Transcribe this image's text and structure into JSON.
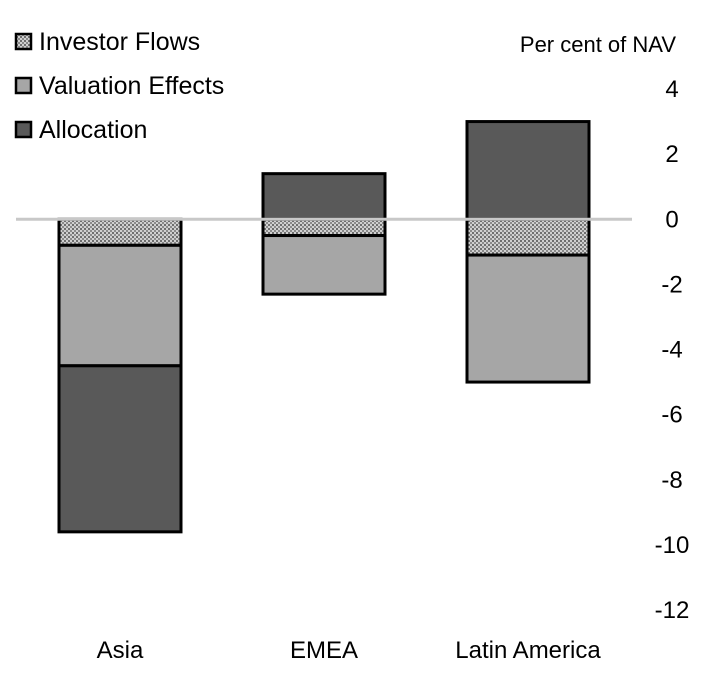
{
  "chart_data": {
    "type": "bar",
    "stacked": true,
    "title": "",
    "unit_label": "Per cent of NAV",
    "categories": [
      "Asia",
      "EMEA",
      "Latin America"
    ],
    "series": [
      {
        "name": "Investor Flows",
        "values": [
          -0.8,
          -0.5,
          -1.1
        ],
        "color": "#b8b8b8",
        "pattern": "dotted"
      },
      {
        "name": "Valuation Effects",
        "values": [
          -3.7,
          -1.8,
          -3.9
        ],
        "color": "#a6a6a6",
        "pattern": "solid"
      },
      {
        "name": "Allocation",
        "values": [
          -5.1,
          1.4,
          3.0
        ],
        "color": "#595959",
        "pattern": "solid"
      }
    ],
    "ylim": [
      -12,
      4
    ],
    "yticks": [
      "4",
      "2",
      "0",
      "-2",
      "-4",
      "-6",
      "-8",
      "-10",
      "-12"
    ],
    "y_axis_side": "right",
    "legend_position": "top-left",
    "grid": false
  }
}
